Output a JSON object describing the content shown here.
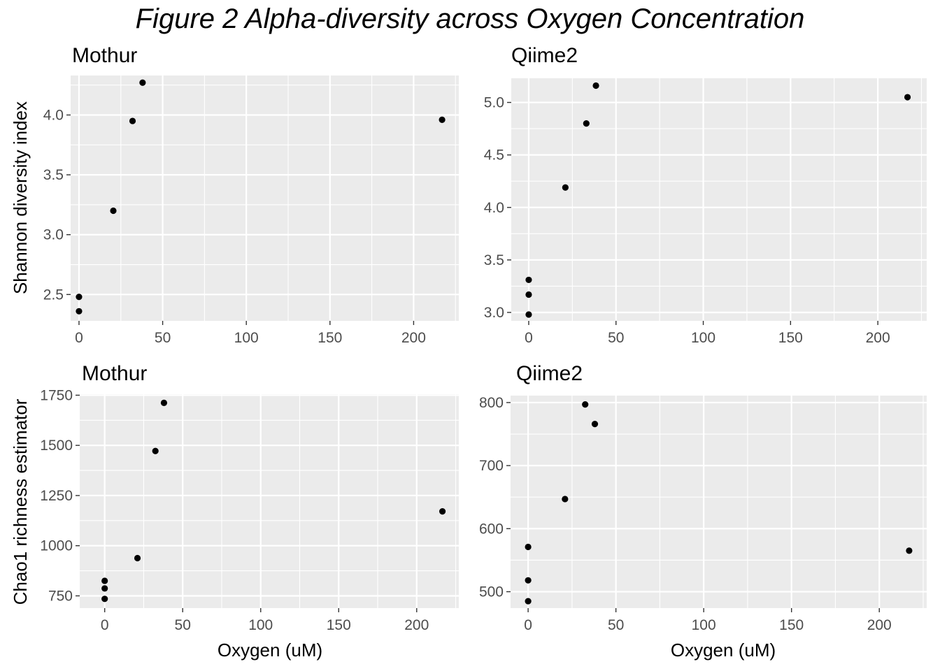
{
  "figure_title": "Figure 2 Alpha-diversity across Oxygen Concentration",
  "shared_labels": {
    "top_ylabel": "Shannon diversity index",
    "bottom_ylabel": "Chao1 richness estimator",
    "xlabel": "Oxygen (uM)"
  },
  "colors": {
    "panel_background": "#ebebeb",
    "grid": "#ffffff",
    "point": "#000000",
    "tick_text": "#4d4d4d"
  },
  "chart_data": [
    {
      "type": "scatter",
      "title": "Mothur",
      "xlabel": "",
      "ylabel": "Shannon diversity index",
      "xlim": [
        -5,
        227
      ],
      "ylim": [
        2.28,
        4.33
      ],
      "xticks": [
        0,
        50,
        100,
        150,
        200
      ],
      "yticks": [
        2.5,
        3.0,
        3.5,
        4.0
      ],
      "ytick_labels": [
        "2.5",
        "3.0",
        "3.5",
        "4.0"
      ],
      "points": [
        {
          "x": 0,
          "y": 2.36
        },
        {
          "x": 0,
          "y": 2.48
        },
        {
          "x": 20.5,
          "y": 3.2
        },
        {
          "x": 32,
          "y": 3.95
        },
        {
          "x": 38,
          "y": 4.27
        },
        {
          "x": 217,
          "y": 3.96
        }
      ]
    },
    {
      "type": "scatter",
      "title": "Qiime2",
      "xlabel": "",
      "ylabel": "",
      "xlim": [
        -10,
        228
      ],
      "ylim": [
        2.92,
        5.23
      ],
      "xticks": [
        0,
        50,
        100,
        150,
        200
      ],
      "yticks": [
        3.0,
        3.5,
        4.0,
        4.5,
        5.0
      ],
      "ytick_labels": [
        "3.0",
        "3.5",
        "4.0",
        "4.5",
        "5.0"
      ],
      "points": [
        {
          "x": 0,
          "y": 2.98
        },
        {
          "x": 0,
          "y": 3.17
        },
        {
          "x": 0,
          "y": 3.31
        },
        {
          "x": 21,
          "y": 4.19
        },
        {
          "x": 33,
          "y": 4.8
        },
        {
          "x": 38.5,
          "y": 5.16
        },
        {
          "x": 217,
          "y": 5.05
        }
      ]
    },
    {
      "type": "scatter",
      "title": "Mothur",
      "xlabel": "Oxygen (uM)",
      "ylabel": "Chao1 richness estimator",
      "xlim": [
        -16,
        227
      ],
      "ylim": [
        689,
        1755
      ],
      "xticks": [
        0,
        50,
        100,
        150,
        200
      ],
      "yticks": [
        750,
        1000,
        1250,
        1500,
        1750
      ],
      "ytick_labels": [
        "750",
        "1000",
        "1250",
        "1500",
        "1750"
      ],
      "points": [
        {
          "x": 0,
          "y": 735
        },
        {
          "x": 0,
          "y": 787
        },
        {
          "x": 0,
          "y": 825
        },
        {
          "x": 21,
          "y": 938
        },
        {
          "x": 32.5,
          "y": 1472
        },
        {
          "x": 38,
          "y": 1712
        },
        {
          "x": 216.5,
          "y": 1171
        }
      ]
    },
    {
      "type": "scatter",
      "title": "Qiime2",
      "xlabel": "Oxygen (uM)",
      "ylabel": "",
      "xlim": [
        -10,
        227
      ],
      "ylim": [
        474,
        811
      ],
      "xticks": [
        0,
        50,
        100,
        150,
        200
      ],
      "yticks": [
        500,
        600,
        700,
        800
      ],
      "ytick_labels": [
        "500",
        "600",
        "700",
        "800"
      ],
      "points": [
        {
          "x": 0,
          "y": 485
        },
        {
          "x": 0,
          "y": 518
        },
        {
          "x": 0,
          "y": 571
        },
        {
          "x": 21,
          "y": 647
        },
        {
          "x": 32.5,
          "y": 797
        },
        {
          "x": 38,
          "y": 766
        },
        {
          "x": 217,
          "y": 565
        }
      ]
    }
  ]
}
